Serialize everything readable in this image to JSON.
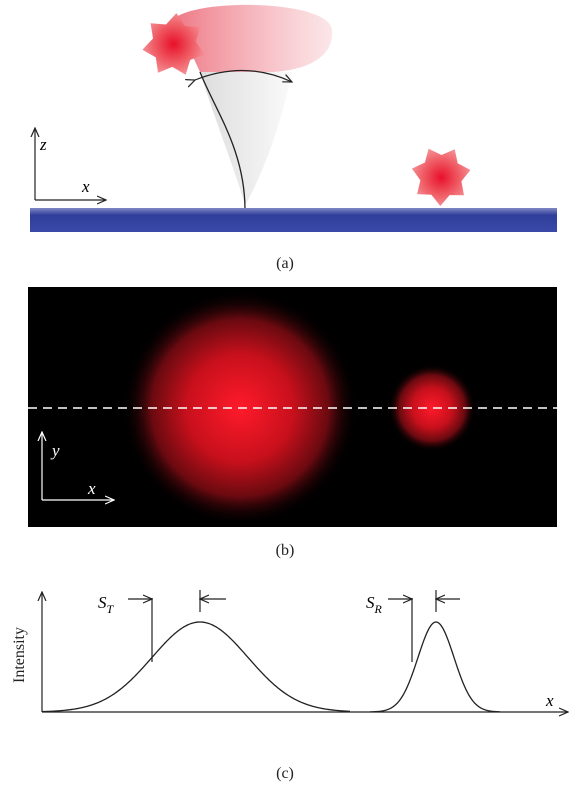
{
  "panels": [
    {
      "label": "(a)",
      "axes": {
        "vertical": "z",
        "horizontal": "x"
      }
    },
    {
      "label": "(b)",
      "axes": {
        "vertical": "y",
        "horizontal": "x"
      }
    },
    {
      "label": "(c)",
      "axes": {
        "vertical": "Intensity",
        "horizontal": "x"
      },
      "markers": [
        {
          "main": "S",
          "sub": "T"
        },
        {
          "main": "S",
          "sub": "R"
        }
      ]
    }
  ]
}
